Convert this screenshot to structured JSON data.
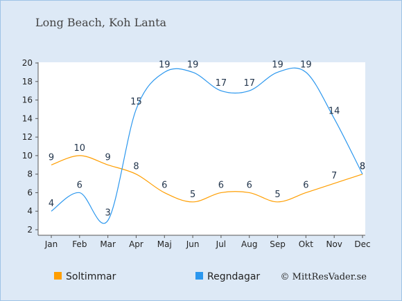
{
  "chart_data": {
    "type": "line",
    "title": "Long Beach, Koh Lanta",
    "categories": [
      "Jan",
      "Feb",
      "Mar",
      "Apr",
      "Maj",
      "Jun",
      "Jul",
      "Aug",
      "Sep",
      "Okt",
      "Nov",
      "Dec"
    ],
    "ylim": [
      2,
      20
    ],
    "yticks": [
      2,
      4,
      6,
      8,
      10,
      12,
      14,
      16,
      18,
      20
    ],
    "series": [
      {
        "name": "Soltimmar",
        "color": "#ff9e00",
        "values": [
          9,
          10,
          9,
          8,
          6,
          5,
          6,
          6,
          5,
          6,
          7,
          8
        ]
      },
      {
        "name": "Regndagar",
        "color": "#2b97ee",
        "values": [
          4,
          6,
          3,
          15,
          19,
          19,
          17,
          17,
          19,
          19,
          14,
          8
        ]
      }
    ],
    "grid": false,
    "legend": "bottom-left"
  },
  "credit": "© MittResVader.se"
}
